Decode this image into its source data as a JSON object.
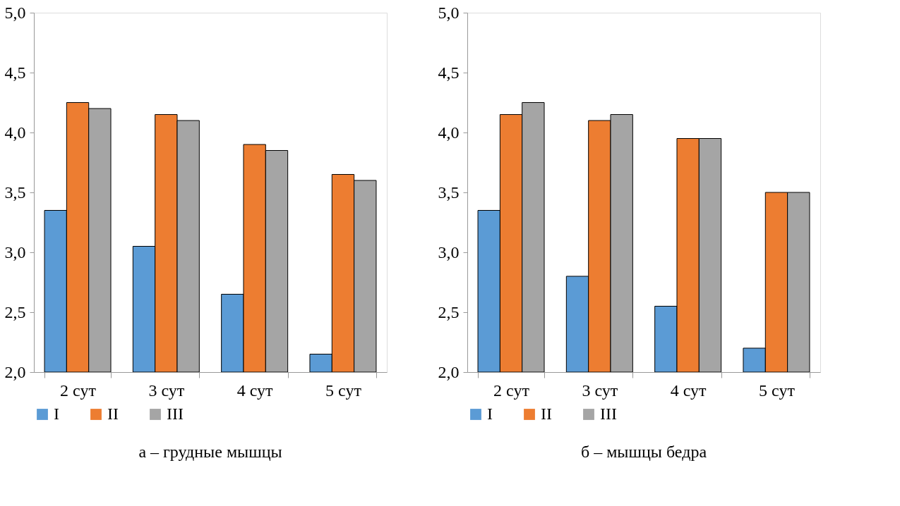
{
  "chart_data": [
    {
      "type": "bar",
      "title": "а – грудные мышцы",
      "categories": [
        "2 сут",
        "3 сут",
        "4 сут",
        "5 сут"
      ],
      "series": [
        {
          "name": "I",
          "color": "#5b9bd5",
          "values": [
            3.35,
            3.05,
            2.65,
            2.15
          ]
        },
        {
          "name": "II",
          "color": "#ed7d31",
          "values": [
            4.25,
            4.15,
            3.9,
            3.65
          ]
        },
        {
          "name": "III",
          "color": "#a5a5a5",
          "values": [
            4.2,
            4.1,
            3.85,
            3.6
          ]
        }
      ],
      "ylim": [
        2.0,
        5.0
      ],
      "yticks": [
        {
          "value": 2.0,
          "label": "2,0"
        },
        {
          "value": 2.5,
          "label": "2,5"
        },
        {
          "value": 3.0,
          "label": "3,0"
        },
        {
          "value": 3.5,
          "label": "3,5"
        },
        {
          "value": 4.0,
          "label": "4,0"
        },
        {
          "value": 4.5,
          "label": "4,5"
        },
        {
          "value": 5.0,
          "label": "5,0"
        }
      ],
      "grid": false,
      "legend": "bottom"
    },
    {
      "type": "bar",
      "title": "б – мышцы бедра",
      "categories": [
        "2 сут",
        "3 сут",
        "4 сут",
        "5 сут"
      ],
      "series": [
        {
          "name": "I",
          "color": "#5b9bd5",
          "values": [
            3.35,
            2.8,
            2.55,
            2.2
          ]
        },
        {
          "name": "II",
          "color": "#ed7d31",
          "values": [
            4.15,
            4.1,
            3.95,
            3.5
          ]
        },
        {
          "name": "III",
          "color": "#a5a5a5",
          "values": [
            4.25,
            4.15,
            3.95,
            3.5
          ]
        }
      ],
      "ylim": [
        2.0,
        5.0
      ],
      "yticks": [
        {
          "value": 2.0,
          "label": "2,0"
        },
        {
          "value": 2.5,
          "label": "2,5"
        },
        {
          "value": 3.0,
          "label": "3,0"
        },
        {
          "value": 3.5,
          "label": "3,5"
        },
        {
          "value": 4.0,
          "label": "4,0"
        },
        {
          "value": 4.5,
          "label": "4,5"
        },
        {
          "value": 5.0,
          "label": "5,0"
        }
      ],
      "grid": false,
      "legend": "bottom"
    }
  ]
}
